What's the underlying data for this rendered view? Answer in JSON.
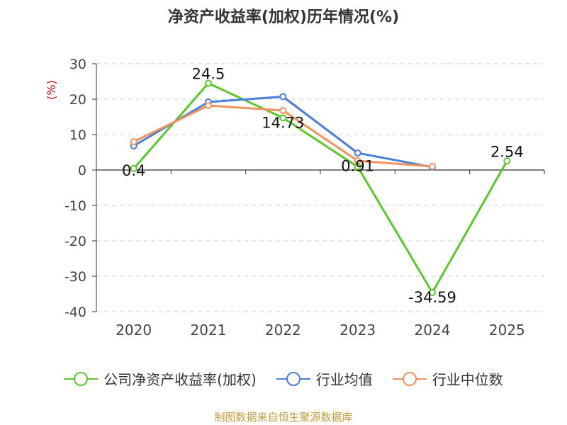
{
  "title": "净资产收益率(加权)历年情况(%)",
  "source": "制图数据来自恒生聚源数据库",
  "colors": {
    "company": "#5ac82a",
    "industry_avg": "#4a7edb",
    "industry_median": "#f4915c",
    "grid": "#cccccc",
    "axis": "#333333",
    "unit": "#cc0000"
  },
  "chart_data": {
    "type": "line",
    "title": "净资产收益率(加权)历年情况(%)",
    "ylabel": "(%)",
    "categories": [
      "2020",
      "2021",
      "2022",
      "2023",
      "2024",
      "2025"
    ],
    "ylim": [
      -40,
      30
    ],
    "yticks": [
      30,
      20,
      10,
      0,
      -10,
      -20,
      -30,
      -40
    ],
    "grid": true,
    "legend": "bottom",
    "series": [
      {
        "name": "公司净资产收益率(加权)",
        "values": [
          0.4,
          24.5,
          14.73,
          0.91,
          -34.59,
          2.54
        ],
        "labels": [
          "0.4",
          "24.5",
          "14.73",
          "0.91",
          "-34.59",
          "2.54"
        ],
        "color": "#5ac82a"
      },
      {
        "name": "行业均值",
        "values": [
          6.8,
          19.2,
          20.7,
          4.8,
          0.8,
          null
        ],
        "color": "#4a7edb"
      },
      {
        "name": "行业中位数",
        "values": [
          8.0,
          18.2,
          16.8,
          2.6,
          1.0,
          null
        ],
        "color": "#f4915c"
      }
    ]
  }
}
